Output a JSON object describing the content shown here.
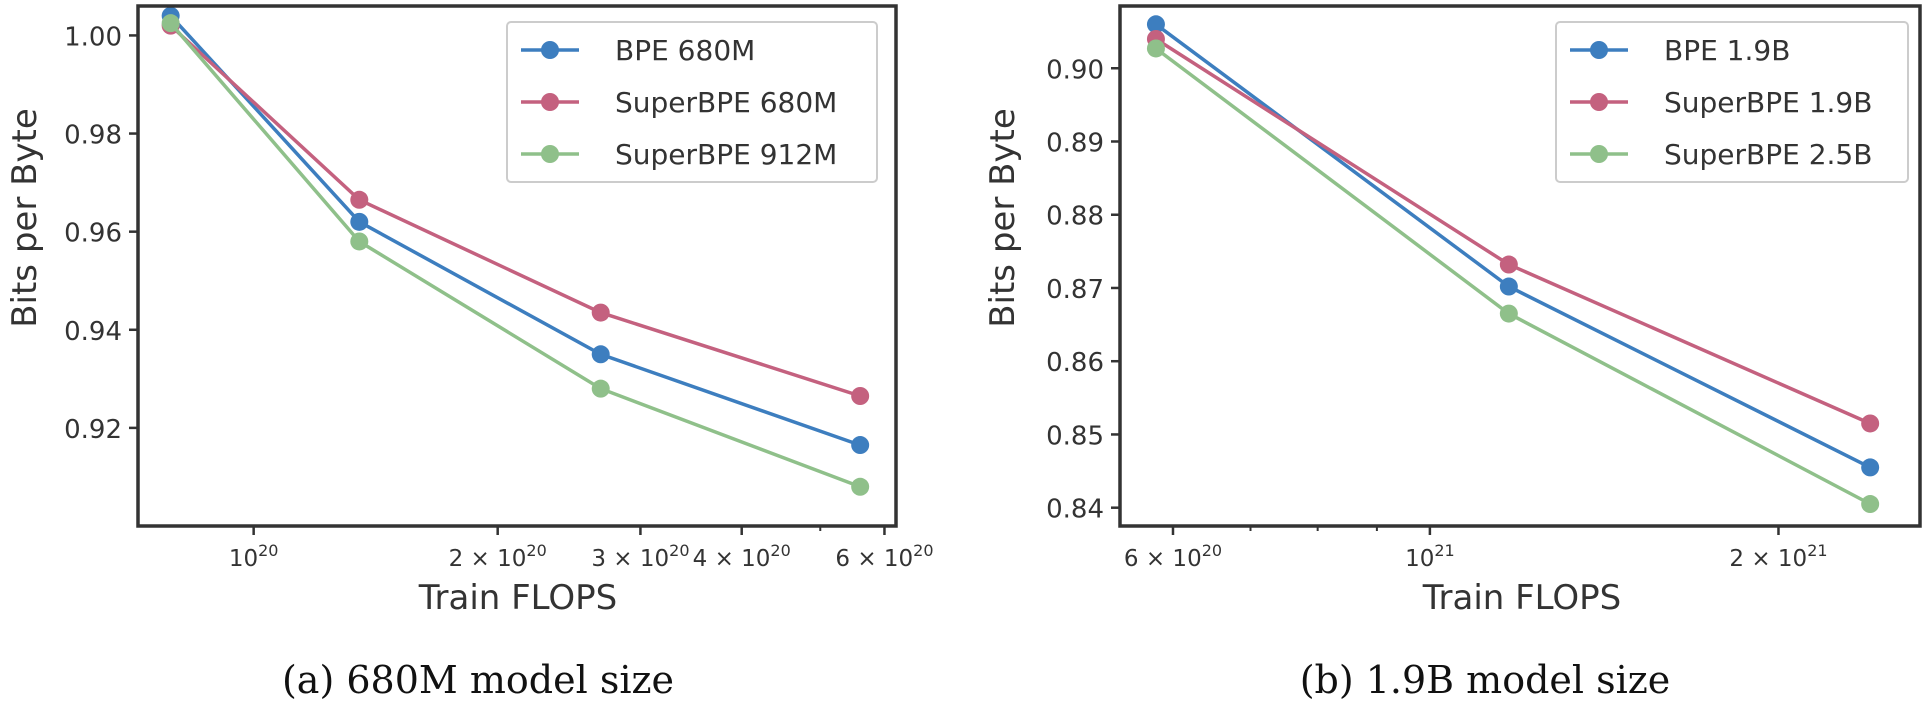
{
  "colors": {
    "frame": "#333333",
    "text": "#333333"
  },
  "charts": [
    {
      "caption": "(a) 680M model size",
      "chart_data": {
        "type": "line",
        "title": "",
        "xlabel": "Train FLOPS",
        "ylabel": "Bits per Byte",
        "xscale": "log",
        "xlim": [
          7.2e+19,
          6.2e+20
        ],
        "ylim": [
          0.9,
          1.006
        ],
        "grid": false,
        "legend_position": "top-right",
        "x_ticks": [
          {
            "value": 1e+20,
            "base": "10",
            "exp": "20"
          },
          {
            "value": 2e+20,
            "base": "2 × 10",
            "exp": "20"
          },
          {
            "value": 3e+20,
            "base": "3 × 10",
            "exp": "20"
          },
          {
            "value": 4e+20,
            "base": "4 × 10",
            "exp": "20"
          },
          {
            "value": 6e+20,
            "base": "6 × 10",
            "exp": "20"
          }
        ],
        "x_minor_ticks": [
          5e+20
        ],
        "y_ticks": [
          {
            "value": 0.92,
            "label": "0.92"
          },
          {
            "value": 0.94,
            "label": "0.94"
          },
          {
            "value": 0.96,
            "label": "0.96"
          },
          {
            "value": 0.98,
            "label": "0.98"
          },
          {
            "value": 1.0,
            "label": "1.00"
          }
        ],
        "series": [
          {
            "name": "BPE 680M",
            "color": "#3d7ebf",
            "x": [
              7.9e+19,
              1.35e+20,
              2.68e+20,
              5.6e+20
            ],
            "y": [
              1.004,
              0.962,
              0.935,
              0.9165
            ]
          },
          {
            "name": "SuperBPE 680M",
            "color": "#c4617f",
            "x": [
              7.9e+19,
              1.35e+20,
              2.68e+20,
              5.6e+20
            ],
            "y": [
              1.002,
              0.9665,
              0.9435,
              0.9265
            ]
          },
          {
            "name": "SuperBPE 912M",
            "color": "#8fc08a",
            "x": [
              7.9e+19,
              1.35e+20,
              2.68e+20,
              5.6e+20
            ],
            "y": [
              1.0025,
              0.958,
              0.928,
              0.908
            ]
          }
        ]
      }
    },
    {
      "caption": "(b) 1.9B model size",
      "chart_data": {
        "type": "line",
        "title": "",
        "xlabel": "Train FLOPS",
        "ylabel": "Bits per Byte",
        "xscale": "log",
        "xlim": [
          5.4e+20,
          2.65e+21
        ],
        "ylim": [
          0.8375,
          0.9085
        ],
        "grid": false,
        "legend_position": "top-right",
        "x_ticks": [
          {
            "value": 6e+20,
            "base": "6 × 10",
            "exp": "20"
          },
          {
            "value": 1e+21,
            "base": "10",
            "exp": "21"
          },
          {
            "value": 2e+21,
            "base": "2 × 10",
            "exp": "21"
          }
        ],
        "x_minor_ticks": [
          7e+20,
          8e+20,
          9e+20
        ],
        "y_ticks": [
          {
            "value": 0.84,
            "label": "0.84"
          },
          {
            "value": 0.85,
            "label": "0.85"
          },
          {
            "value": 0.86,
            "label": "0.86"
          },
          {
            "value": 0.87,
            "label": "0.87"
          },
          {
            "value": 0.88,
            "label": "0.88"
          },
          {
            "value": 0.89,
            "label": "0.89"
          },
          {
            "value": 0.9,
            "label": "0.90"
          }
        ],
        "series": [
          {
            "name": "BPE 1.9B",
            "color": "#3d7ebf",
            "x": [
              5.8e+20,
              1.17e+21,
              2.4e+21
            ],
            "y": [
              0.906,
              0.8702,
              0.8455
            ]
          },
          {
            "name": "SuperBPE 1.9B",
            "color": "#c4617f",
            "x": [
              5.8e+20,
              1.17e+21,
              2.4e+21
            ],
            "y": [
              0.904,
              0.8732,
              0.8515
            ]
          },
          {
            "name": "SuperBPE 2.5B",
            "color": "#8fc08a",
            "x": [
              5.8e+20,
              1.17e+21,
              2.4e+21
            ],
            "y": [
              0.9027,
              0.8665,
              0.8405
            ]
          }
        ]
      }
    }
  ]
}
